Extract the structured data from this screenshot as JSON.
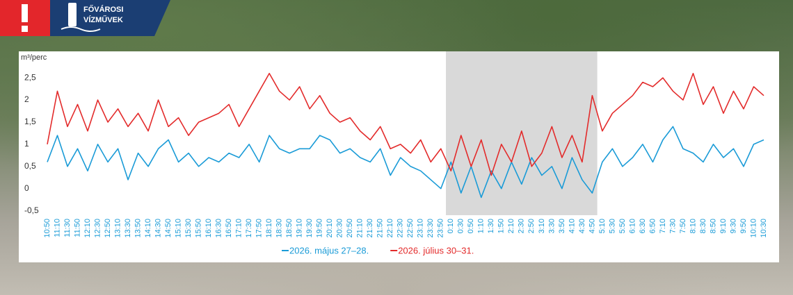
{
  "header": {
    "logo_line1": "FŐVÁROSI",
    "logo_line2": "VÍZMŰVEK"
  },
  "chart_data": {
    "type": "line",
    "y_label": "m³/perc",
    "categories": [
      "10:50",
      "11:10",
      "11:30",
      "11:50",
      "12:10",
      "12:30",
      "12:50",
      "13:10",
      "13:30",
      "13:50",
      "14:10",
      "14:30",
      "14:50",
      "15:10",
      "15:30",
      "15:50",
      "16:10",
      "16:30",
      "16:50",
      "17:10",
      "17:30",
      "17:50",
      "18:10",
      "18:30",
      "18:50",
      "19:10",
      "19:30",
      "19:50",
      "20:10",
      "20:30",
      "20:50",
      "21:10",
      "21:30",
      "21:50",
      "22:10",
      "22:30",
      "22:50",
      "23:10",
      "23:30",
      "23:50",
      "0:10",
      "0:30",
      "0:50",
      "1:10",
      "1:30",
      "1:50",
      "2:10",
      "2:30",
      "2:50",
      "3:10",
      "3:30",
      "3:50",
      "4:10",
      "4:30",
      "4:50",
      "5:10",
      "5:30",
      "5:50",
      "6:10",
      "6:30",
      "6:50",
      "7:10",
      "7:30",
      "7:50",
      "8:10",
      "8:30",
      "8:50",
      "9:10",
      "9:30",
      "9:50",
      "10:10",
      "10:30"
    ],
    "series": [
      {
        "name": "2026. május 27–28.",
        "color": "#1a9bd7",
        "values": [
          0.6,
          1.2,
          0.5,
          0.9,
          0.4,
          1.0,
          0.6,
          0.9,
          0.2,
          0.8,
          0.5,
          0.9,
          1.1,
          0.6,
          0.8,
          0.5,
          0.7,
          0.6,
          0.8,
          0.7,
          1.0,
          0.6,
          1.2,
          0.9,
          0.8,
          0.9,
          0.9,
          1.2,
          1.1,
          0.8,
          0.9,
          0.7,
          0.6,
          0.9,
          0.3,
          0.7,
          0.5,
          0.4,
          0.2,
          0.0,
          0.6,
          -0.1,
          0.5,
          -0.2,
          0.4,
          0.0,
          0.6,
          0.1,
          0.7,
          0.3,
          0.5,
          0.0,
          0.7,
          0.2,
          -0.1,
          0.6,
          0.9,
          0.5,
          0.7,
          1.0,
          0.6,
          1.1,
          1.4,
          0.9,
          0.8,
          0.6,
          1.0,
          0.7,
          0.9,
          0.5,
          1.0,
          1.1
        ]
      },
      {
        "name": "2026. július 30–31.",
        "color": "#e32b2b",
        "values": [
          1.0,
          2.2,
          1.4,
          1.9,
          1.3,
          2.0,
          1.5,
          1.8,
          1.4,
          1.7,
          1.3,
          2.0,
          1.4,
          1.6,
          1.2,
          1.5,
          1.6,
          1.7,
          1.9,
          1.4,
          1.8,
          2.2,
          2.6,
          2.2,
          2.0,
          2.3,
          1.8,
          2.1,
          1.7,
          1.5,
          1.6,
          1.3,
          1.1,
          1.4,
          0.9,
          1.0,
          0.8,
          1.1,
          0.6,
          0.9,
          0.4,
          1.2,
          0.5,
          1.1,
          0.3,
          1.0,
          0.6,
          1.3,
          0.5,
          0.8,
          1.4,
          0.7,
          1.2,
          0.6,
          2.1,
          1.3,
          1.7,
          1.9,
          2.1,
          2.4,
          2.3,
          2.5,
          2.2,
          2.0,
          2.6,
          1.9,
          2.3,
          1.7,
          2.2,
          1.8,
          2.3,
          2.1
        ]
      }
    ],
    "ylim": [
      -0.6,
      2.8
    ],
    "yticks": [
      {
        "value": -0.5,
        "label": "-0,5"
      },
      0,
      {
        "value": 0.5,
        "label": "0,5"
      },
      1,
      {
        "value": 1.5,
        "label": "1,5"
      },
      2,
      {
        "value": 2.5,
        "label": "2,5"
      }
    ],
    "shaded_range": {
      "from": "0:10",
      "to": "4:50"
    },
    "shade_color": "#d9d9d9",
    "tick_label_color": "#1a9bd7",
    "legend": "bottom"
  }
}
